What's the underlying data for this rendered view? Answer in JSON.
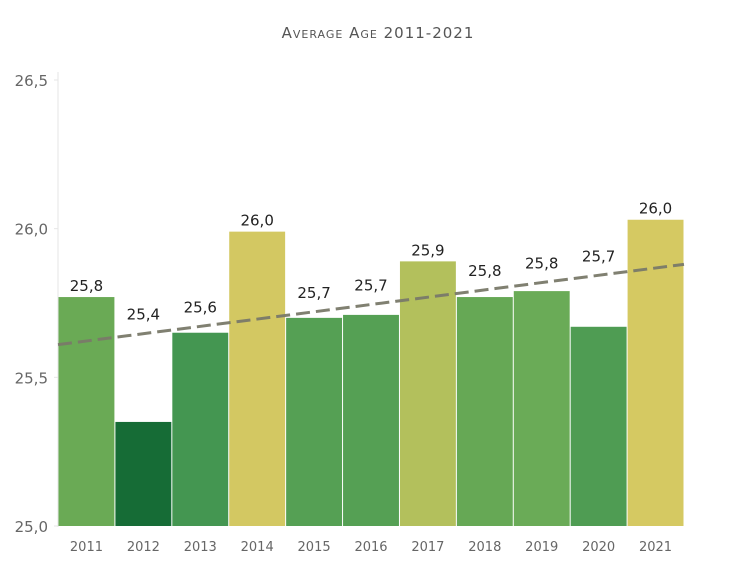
{
  "chart_data": {
    "type": "bar",
    "title": "Average Age 2011-2021",
    "xlabel": "",
    "ylabel": "",
    "categories": [
      "2011",
      "2012",
      "2013",
      "2014",
      "2015",
      "2016",
      "2017",
      "2018",
      "2019",
      "2020",
      "2021"
    ],
    "values": [
      25.77,
      25.35,
      25.65,
      25.99,
      25.7,
      25.71,
      25.89,
      25.77,
      25.79,
      25.67,
      26.03
    ],
    "data_labels": [
      "25,8",
      "25,4",
      "25,6",
      "26,0",
      "25,7",
      "25,7",
      "25,9",
      "25,8",
      "25,8",
      "25,7",
      "26,0"
    ],
    "bar_colors": [
      "#6aaa55",
      "#166c36",
      "#449651",
      "#d3c862",
      "#55a054",
      "#55a054",
      "#b3c05c",
      "#66a855",
      "#6aab57",
      "#4f9c53",
      "#d5c962"
    ],
    "ylim": [
      25.0,
      26.5
    ],
    "yticks": [
      25.0,
      25.5,
      26.0,
      26.5
    ],
    "ytick_labels": [
      "25,0",
      "25,5",
      "26,0",
      "26,5"
    ],
    "grid": false,
    "legend": "none",
    "trendline": {
      "type": "linear",
      "style": "dashed",
      "color": "#7a7a6a",
      "start_value": 25.61,
      "end_value": 25.88
    }
  }
}
